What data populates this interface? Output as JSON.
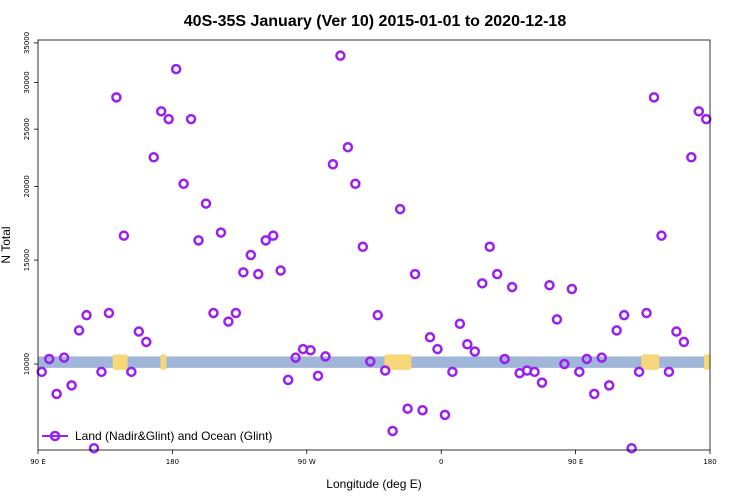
{
  "chart_data": {
    "type": "scatter",
    "title": "40S-35S January (Ver 10)   2015-01-01 to 2020-12-18",
    "xlabel": "Longitude (deg E)",
    "ylabel": "N Total",
    "x_ticks": [
      "90 E",
      "180",
      "90 W",
      "0",
      "90 E",
      "180"
    ],
    "x_tick_values": [
      90,
      180,
      270,
      360,
      450,
      540
    ],
    "xlim": [
      90,
      540
    ],
    "y_ticks": [
      "10000",
      "15000",
      "20000",
      "25000",
      "30000",
      "35000"
    ],
    "y_tick_values": [
      10000,
      15000,
      20000,
      25000,
      30000,
      35000
    ],
    "y_scale": "log",
    "ylim": [
      7150,
      35400
    ],
    "legend": {
      "label": "Land (Nadir&Glint) and Ocean (Glint)",
      "position": "bottom-left"
    },
    "series": [
      {
        "name": "Land (Nadir&Glint) and Ocean (Glint)",
        "color": "#9a1ff0",
        "x": [
          92.5,
          97.5,
          102.5,
          107.5,
          112.5,
          117.5,
          122.5,
          127.5,
          132.5,
          137.5,
          142.5,
          147.5,
          152.5,
          157.5,
          162.5,
          167.5,
          172.5,
          177.5,
          182.5,
          187.5,
          192.5,
          197.5,
          202.5,
          207.5,
          212.5,
          217.5,
          222.5,
          227.5,
          232.5,
          237.5,
          242.5,
          247.5,
          252.5,
          257.5,
          262.5,
          267.5,
          272.5,
          277.5,
          282.5,
          287.5,
          292.5,
          297.5,
          302.5,
          307.5,
          312.5,
          317.5,
          322.5,
          327.5,
          332.5,
          337.5,
          342.5,
          347.5,
          352.5,
          357.5,
          362.5,
          367.5,
          372.5,
          377.5,
          382.5,
          387.5,
          392.5,
          397.5,
          402.5,
          407.5,
          412.5,
          417.5,
          422.5,
          427.5,
          432.5,
          437.5,
          442.5,
          447.5,
          452.5,
          457.5,
          462.5,
          467.5,
          472.5,
          477.5,
          482.5,
          487.5,
          492.5,
          497.5,
          502.5,
          507.5,
          512.5,
          517.5,
          522.5,
          527.5,
          532.5,
          537.5
        ],
        "y": [
          9700,
          10200,
          8900,
          10250,
          9200,
          11400,
          12100,
          7200,
          9700,
          12200,
          28300,
          16500,
          9700,
          11350,
          10900,
          22400,
          26800,
          26000,
          31600,
          20200,
          26000,
          16200,
          18700,
          12200,
          16700,
          11800,
          12200,
          14300,
          15300,
          14200,
          16200,
          16500,
          14400,
          9400,
          10250,
          10600,
          10550,
          9550,
          10300,
          21800,
          33300,
          23300,
          20200,
          15800,
          10100,
          12100,
          9750,
          7700,
          18300,
          8400,
          14200,
          8350,
          11100,
          10600,
          8200,
          9700,
          11700,
          10800,
          10500,
          13700,
          15800,
          14200,
          10200,
          13500,
          9650,
          9750,
          9700,
          9300,
          13600,
          11900,
          10000,
          13400,
          9700,
          10200,
          8900,
          10250,
          9200,
          11400,
          12100,
          7200,
          9700,
          12200,
          28300,
          16500,
          9700,
          11350,
          10900,
          22400,
          26800,
          26000
        ]
      }
    ]
  },
  "colors": {
    "ocean_band": "#9fb6d9",
    "land_band": "#f6d77a",
    "marker": "#9a1ff0"
  }
}
